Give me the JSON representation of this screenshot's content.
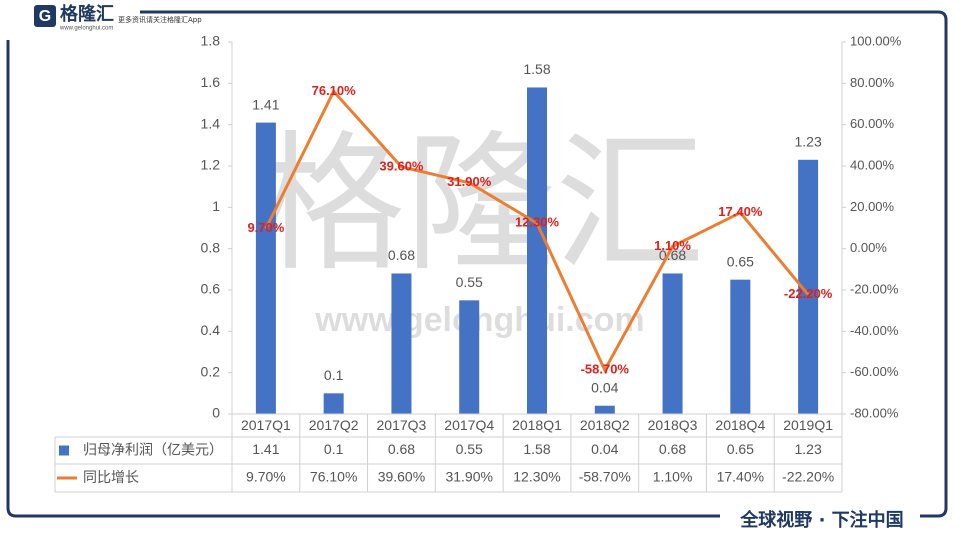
{
  "logo": {
    "name": "格隆汇",
    "url": "www.gelonghui.com",
    "tagline": "更多资讯请关注格隆汇App"
  },
  "watermark": {
    "text": "格隆汇",
    "url": "www.gelonghui.com"
  },
  "slogan": "全球视野 · 下注中国",
  "chart_data": {
    "type": "bar-line",
    "categories": [
      "2017Q1",
      "2017Q2",
      "2017Q3",
      "2017Q4",
      "2018Q1",
      "2018Q2",
      "2018Q3",
      "2018Q4",
      "2019Q1"
    ],
    "series": [
      {
        "name": "归母净利润（亿美元）",
        "color": "#4472c4",
        "type": "bar",
        "values": [
          1.41,
          0.1,
          0.68,
          0.55,
          1.58,
          0.04,
          0.68,
          0.65,
          1.23
        ]
      },
      {
        "name": "同比增长",
        "color": "#ed7d31",
        "type": "line",
        "axis": "y2",
        "values": [
          9.7,
          76.1,
          39.6,
          31.9,
          12.3,
          -58.7,
          1.1,
          17.4,
          -22.2
        ],
        "value_labels": [
          "9.70%",
          "76.10%",
          "39.60%",
          "31.90%",
          "12.30%",
          "-58.70%",
          "1.10%",
          "17.40%",
          "-22.20%"
        ]
      }
    ],
    "ylim": [
      0,
      1.8
    ],
    "yticks": [
      0,
      0.2,
      0.4,
      0.6,
      0.8,
      1,
      1.2,
      1.4,
      1.6,
      1.8
    ],
    "y2lim": [
      -80,
      100
    ],
    "y2ticks": [
      {
        "value": -80,
        "label": "-80.00%"
      },
      {
        "value": -60,
        "label": "-60.00%"
      },
      {
        "value": -40,
        "label": "-40.00%"
      },
      {
        "value": -20,
        "label": "-20.00%"
      },
      {
        "value": 0,
        "label": "0.00%"
      },
      {
        "value": 20,
        "label": "20.00%"
      },
      {
        "value": 40,
        "label": "40.00%"
      },
      {
        "value": 60,
        "label": "60.00%"
      },
      {
        "value": 80,
        "label": "80.00%"
      },
      {
        "value": 100,
        "label": "100.00%"
      }
    ],
    "data_table": true
  }
}
